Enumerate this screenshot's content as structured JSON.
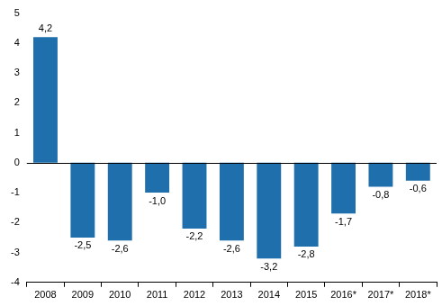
{
  "chart_data": {
    "type": "bar",
    "categories": [
      "2008",
      "2009",
      "2010",
      "2011",
      "2012",
      "2013",
      "2014",
      "2015",
      "2016*",
      "2017*",
      "2018*"
    ],
    "values": [
      4.2,
      -2.5,
      -2.6,
      -1.0,
      -2.2,
      -2.6,
      -3.2,
      -2.8,
      -1.7,
      -0.8,
      -0.6
    ],
    "value_labels": [
      "4,2",
      "-2,5",
      "-2,6",
      "-1,0",
      "-2,2",
      "-2,6",
      "-3,2",
      "-2,8",
      "-1,7",
      "-0,8",
      "-0,6"
    ],
    "color": "#1f6fad",
    "ylim": [
      -4,
      5
    ],
    "yticks": [
      -4,
      -3,
      -2,
      -1,
      0,
      1,
      2,
      3,
      4,
      5
    ],
    "grid": false,
    "data_labels": true
  }
}
